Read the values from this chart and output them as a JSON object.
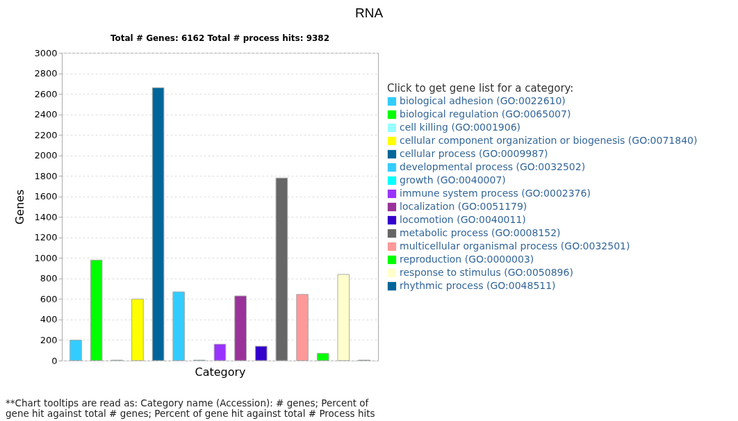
{
  "chart_data": {
    "type": "bar",
    "title": "RNA",
    "subtitle": "Total # Genes: 6162    Total # process hits: 9382",
    "xlabel": "Category",
    "ylabel": "Genes",
    "legend_title": "Click to get gene list for a category:",
    "categories": [
      null,
      null,
      null,
      null,
      null,
      null,
      null,
      null,
      null,
      null,
      null,
      null,
      null,
      null,
      null
    ],
    "series": [
      {
        "name": "biological adhesion (GO:0022610)",
        "color": "#33ccff",
        "values": [
          200,
          null,
          null,
          null,
          null,
          null,
          null,
          null,
          null,
          null,
          null,
          null,
          null,
          null,
          null
        ]
      },
      {
        "name": "biological regulation (GO:0065007)",
        "color": "#00ff00",
        "values": [
          null,
          980,
          null,
          null,
          null,
          null,
          null,
          null,
          null,
          null,
          null,
          null,
          null,
          null,
          null
        ]
      },
      {
        "name": "cell killing (GO:0001906)",
        "color": "#99ffff",
        "values": [
          null,
          null,
          5,
          null,
          null,
          null,
          null,
          null,
          null,
          null,
          null,
          null,
          null,
          null,
          null
        ]
      },
      {
        "name": "cellular component organization or biogenesis (GO:0071840)",
        "color": "#ffff00",
        "values": [
          null,
          null,
          null,
          600,
          null,
          null,
          null,
          null,
          null,
          null,
          null,
          null,
          null,
          null,
          null
        ]
      },
      {
        "name": "cellular process (GO:0009987)",
        "color": "#006699",
        "values": [
          null,
          null,
          null,
          null,
          2660,
          null,
          null,
          null,
          null,
          null,
          null,
          null,
          null,
          null,
          null
        ]
      },
      {
        "name": "developmental process (GO:0032502)",
        "color": "#33ccff",
        "values": [
          null,
          null,
          null,
          null,
          null,
          670,
          null,
          null,
          null,
          null,
          null,
          null,
          null,
          null,
          null
        ]
      },
      {
        "name": "growth (GO:0040007)",
        "color": "#00ffff",
        "values": [
          null,
          null,
          null,
          null,
          null,
          null,
          5,
          null,
          null,
          null,
          null,
          null,
          null,
          null,
          null
        ]
      },
      {
        "name": "immune system process (GO:0002376)",
        "color": "#9933ff",
        "values": [
          null,
          null,
          null,
          null,
          null,
          null,
          null,
          160,
          null,
          null,
          null,
          null,
          null,
          null,
          null
        ]
      },
      {
        "name": "localization (GO:0051179)",
        "color": "#993399",
        "values": [
          null,
          null,
          null,
          null,
          null,
          null,
          null,
          null,
          630,
          null,
          null,
          null,
          null,
          null,
          null
        ]
      },
      {
        "name": "locomotion (GO:0040011)",
        "color": "#3300cc",
        "values": [
          null,
          null,
          null,
          null,
          null,
          null,
          null,
          null,
          null,
          140,
          null,
          null,
          null,
          null,
          null
        ]
      },
      {
        "name": "metabolic process (GO:0008152)",
        "color": "#666666",
        "values": [
          null,
          null,
          null,
          null,
          null,
          null,
          null,
          null,
          null,
          null,
          1780,
          null,
          null,
          null,
          null
        ]
      },
      {
        "name": "multicellular organismal process (GO:0032501)",
        "color": "#ff9999",
        "values": [
          null,
          null,
          null,
          null,
          null,
          null,
          null,
          null,
          null,
          null,
          null,
          645,
          null,
          null,
          null
        ]
      },
      {
        "name": "reproduction (GO:0000003)",
        "color": "#00ff00",
        "values": [
          null,
          null,
          null,
          null,
          null,
          null,
          null,
          null,
          null,
          null,
          null,
          null,
          70,
          null,
          null
        ]
      },
      {
        "name": "response to stimulus (GO:0050896)",
        "color": "#ffffcc",
        "values": [
          null,
          null,
          null,
          null,
          null,
          null,
          null,
          null,
          null,
          null,
          null,
          null,
          null,
          840,
          null
        ]
      },
      {
        "name": "rhythmic process (GO:0048511)",
        "color": "#006699",
        "values": [
          null,
          null,
          null,
          null,
          null,
          null,
          null,
          null,
          null,
          null,
          null,
          null,
          null,
          null,
          5
        ]
      }
    ],
    "ylim": [
      0,
      3000
    ],
    "yticks": [
      0,
      200,
      400,
      600,
      800,
      1000,
      1200,
      1400,
      1600,
      1800,
      2000,
      2200,
      2400,
      2600,
      2800,
      3000
    ],
    "grid": "y",
    "legend": "right",
    "tick_labels": "y",
    "annotations": [
      "**Chart tooltips are read as: Category name (Accession): # genes; Percent of gene hit against total # genes; Percent of gene hit against total # Process hits"
    ]
  }
}
